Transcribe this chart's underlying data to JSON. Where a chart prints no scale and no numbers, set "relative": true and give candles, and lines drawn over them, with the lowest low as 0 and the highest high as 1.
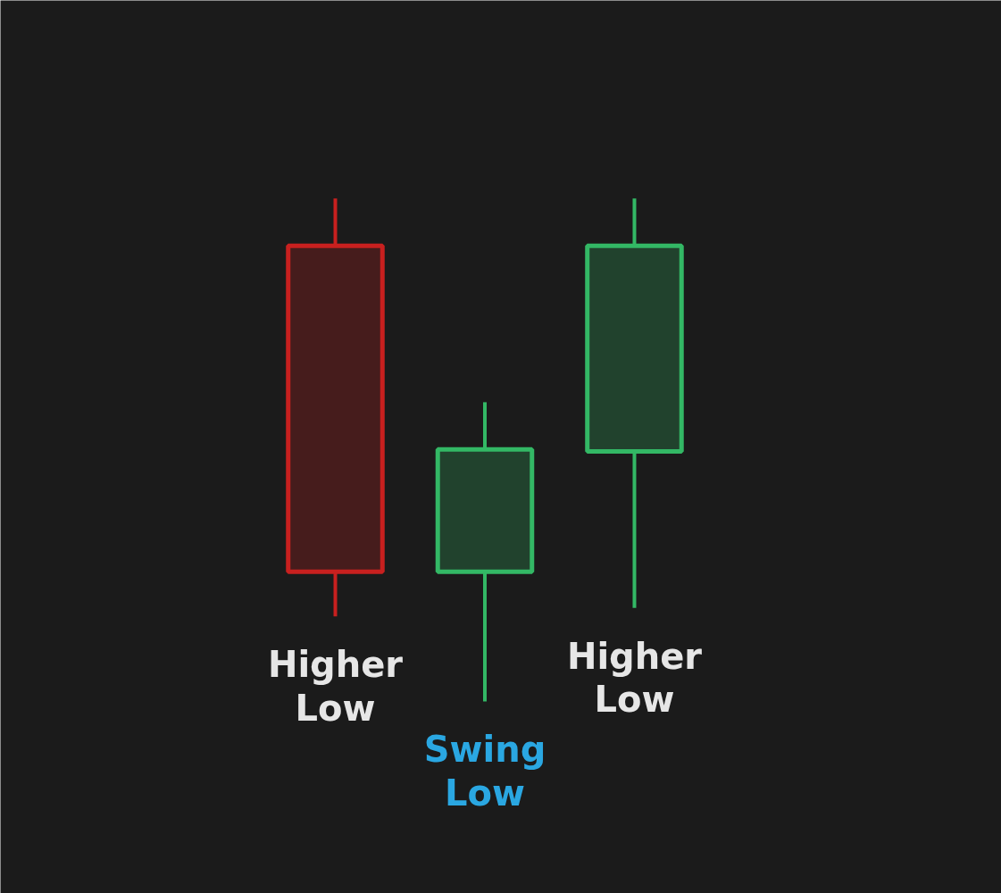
{
  "chart_data": {
    "type": "candlestick",
    "relative": true,
    "categories": [
      null,
      null,
      null
    ],
    "ohlc": [
      [
        0.906,
        1,
        0.169,
        0.258
      ],
      [
        0.258,
        0.595,
        0,
        0.501
      ],
      [
        0.497,
        1,
        0.186,
        0.906
      ]
    ],
    "colors": [
      "#c8201f",
      "#33b865",
      "#33b865"
    ],
    "annotations": [
      "Higher Low",
      "Swing Low",
      "Higher Low"
    ]
  }
}
